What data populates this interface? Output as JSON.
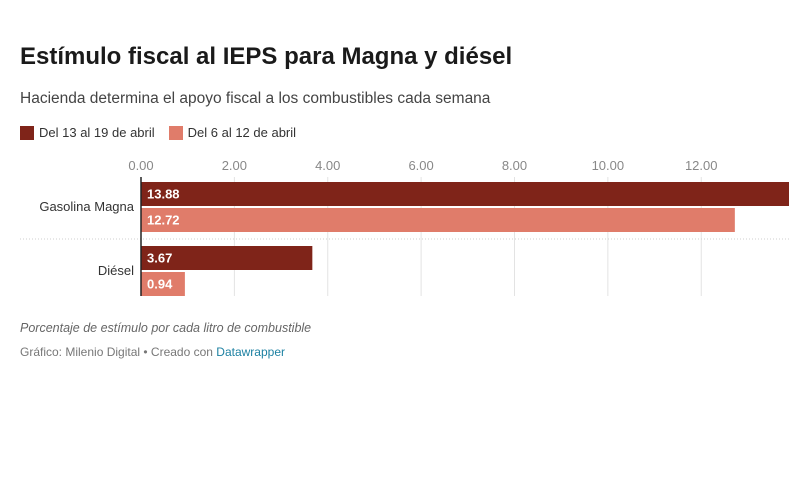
{
  "title": "Estímulo fiscal al IEPS para Magna y diésel",
  "subtitle": "Hacienda determina el apoyo fiscal a los combustibles cada semana",
  "note": "Porcentaje de estímulo por cada litro de combustible",
  "credit": {
    "prefix": "Gráfico: Milenio Digital • Creado con",
    "link": "Datawrapper"
  },
  "colors": {
    "series1": "#7f2419",
    "series2": "#e07c6a",
    "link": "#1d81a2"
  },
  "chart_data": {
    "type": "bar",
    "orientation": "horizontal",
    "categories": [
      "Gasolina Magna",
      "Diésel"
    ],
    "series": [
      {
        "name": "Del 13 al 19 de abril",
        "values": [
          13.88,
          3.67
        ],
        "labels": [
          "13.88",
          "3.67"
        ]
      },
      {
        "name": "Del 6 al 12 de abril",
        "values": [
          12.72,
          0.94
        ],
        "labels": [
          "12.72",
          "0.94"
        ]
      }
    ],
    "xlim": [
      0,
      13.88
    ],
    "ticks": [
      0,
      2,
      4,
      6,
      8,
      10,
      12
    ],
    "tick_labels": [
      "0.00",
      "2.00",
      "4.00",
      "6.00",
      "8.00",
      "10.00",
      "12.00"
    ],
    "legend": "top-left",
    "grid": true
  }
}
